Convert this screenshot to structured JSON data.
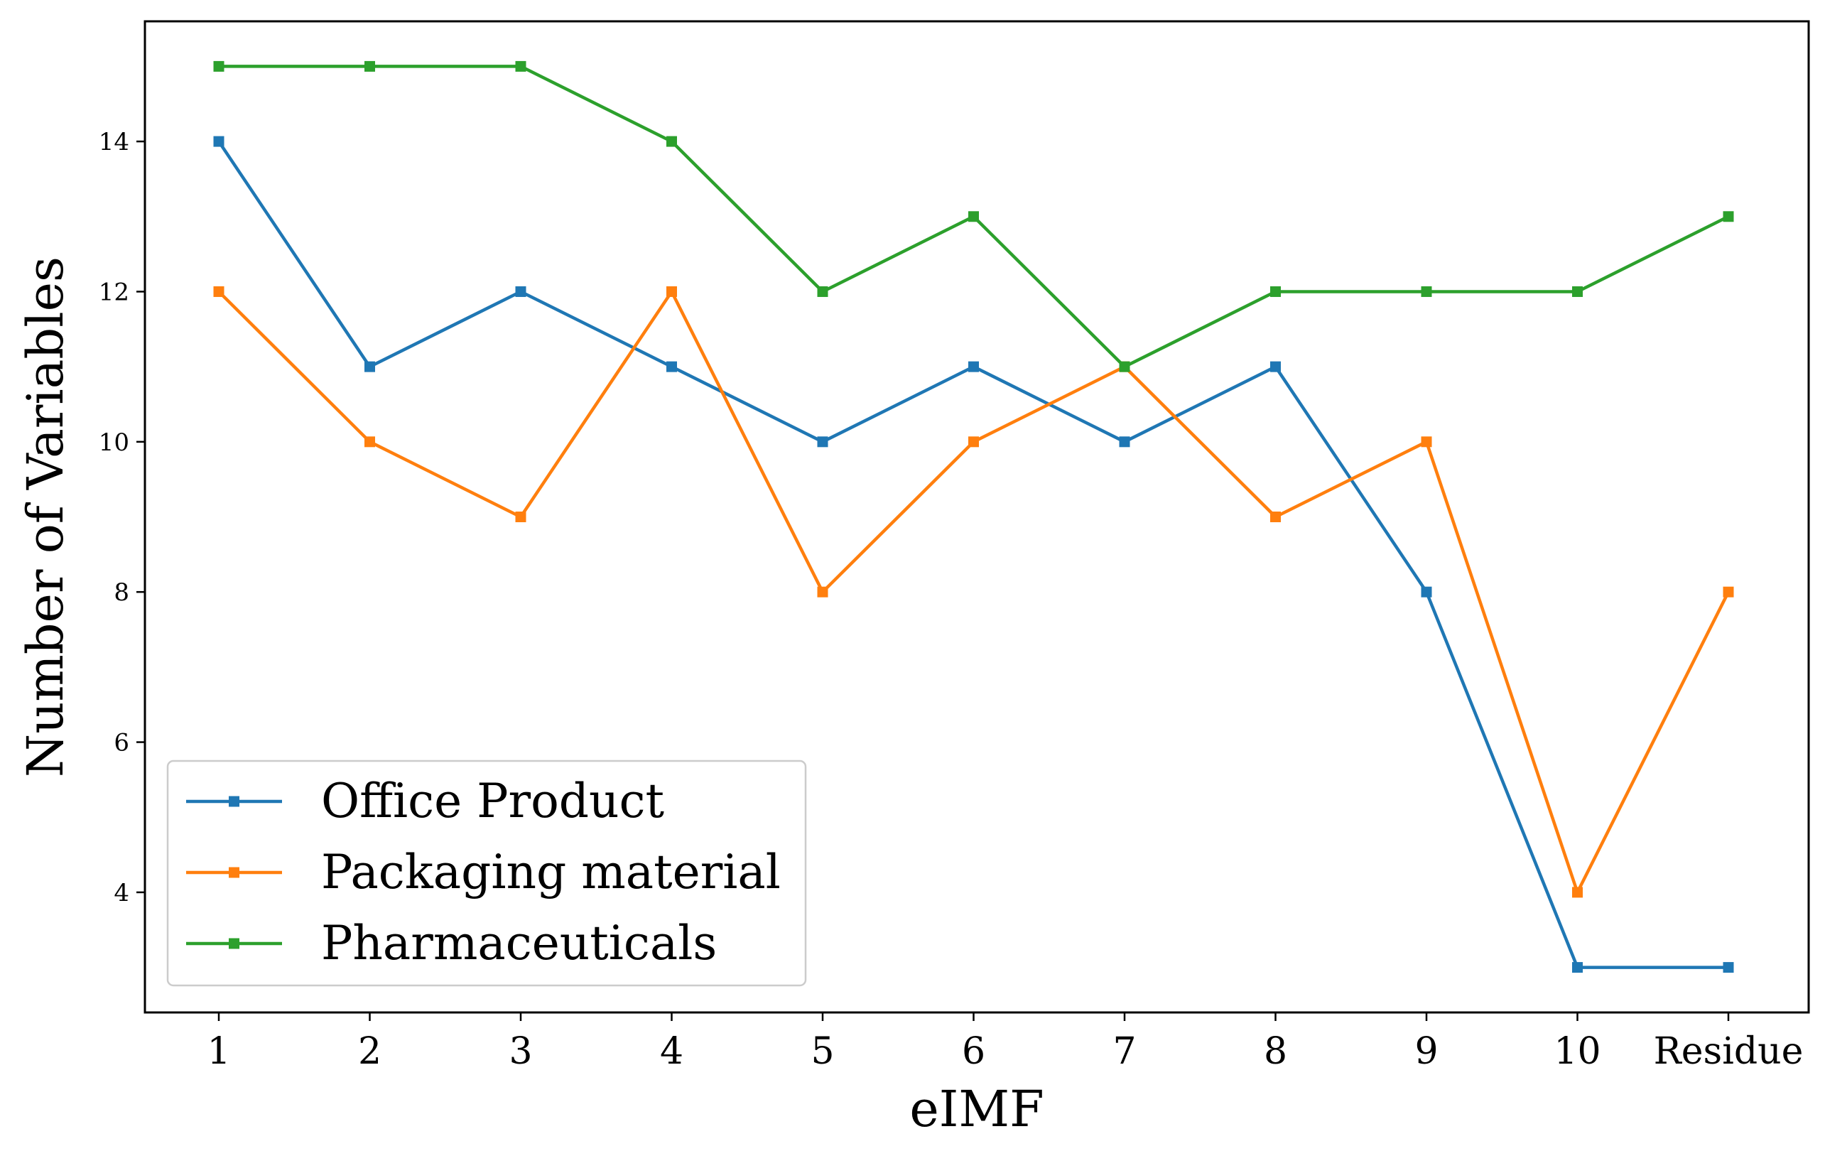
{
  "chart_data": {
    "type": "line",
    "categories": [
      "1",
      "2",
      "3",
      "4",
      "5",
      "6",
      "7",
      "8",
      "9",
      "10",
      "Residue"
    ],
    "series": [
      {
        "name": "Office Product",
        "color": "#1f77b4",
        "values": [
          14,
          11,
          12,
          11,
          10,
          11,
          10,
          11,
          8,
          3,
          3
        ]
      },
      {
        "name": "Packaging material",
        "color": "#ff7f0e",
        "values": [
          12,
          10,
          9,
          12,
          8,
          10,
          11,
          9,
          10,
          4,
          8
        ]
      },
      {
        "name": "Pharmaceuticals",
        "color": "#2ca02c",
        "values": [
          15,
          15,
          15,
          14,
          12,
          13,
          11,
          12,
          12,
          12,
          13
        ]
      }
    ],
    "xlabel": "eIMF",
    "ylabel": "Number of Variables",
    "ylim": [
      2.4,
      15.6
    ],
    "yticks": [
      "4",
      "6",
      "8",
      "10",
      "12",
      "14"
    ],
    "grid": false,
    "legend_position": "lower-left",
    "marker": "square"
  }
}
